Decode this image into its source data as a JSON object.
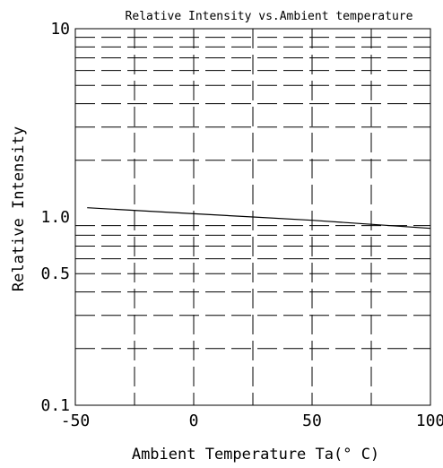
{
  "chart_data": {
    "type": "line",
    "title": "Relative Intensity vs.Ambient temperature",
    "xlabel": "Ambient Temperature Ta(° C)",
    "ylabel": "Relative Intensity",
    "x_scale": "linear",
    "y_scale": "log",
    "xlim": [
      -50,
      100
    ],
    "ylim": [
      0.1,
      10
    ],
    "x_ticks": [
      -50,
      0,
      50,
      100
    ],
    "x_tick_labels": [
      "-50",
      "0",
      "50",
      "100"
    ],
    "y_ticks": [
      0.1,
      0.5,
      1.0,
      10
    ],
    "y_tick_labels": [
      "0.1",
      "0.5",
      "1.0",
      "10"
    ],
    "grid": true,
    "grid_style": "dashed",
    "series": [
      {
        "x": [
          -45,
          0,
          25,
          50,
          100
        ],
        "y": [
          1.12,
          1.04,
          1.0,
          0.96,
          0.87
        ]
      }
    ],
    "colors": {
      "line": "#000000",
      "grid": "#000000",
      "background": "#ffffff"
    }
  }
}
